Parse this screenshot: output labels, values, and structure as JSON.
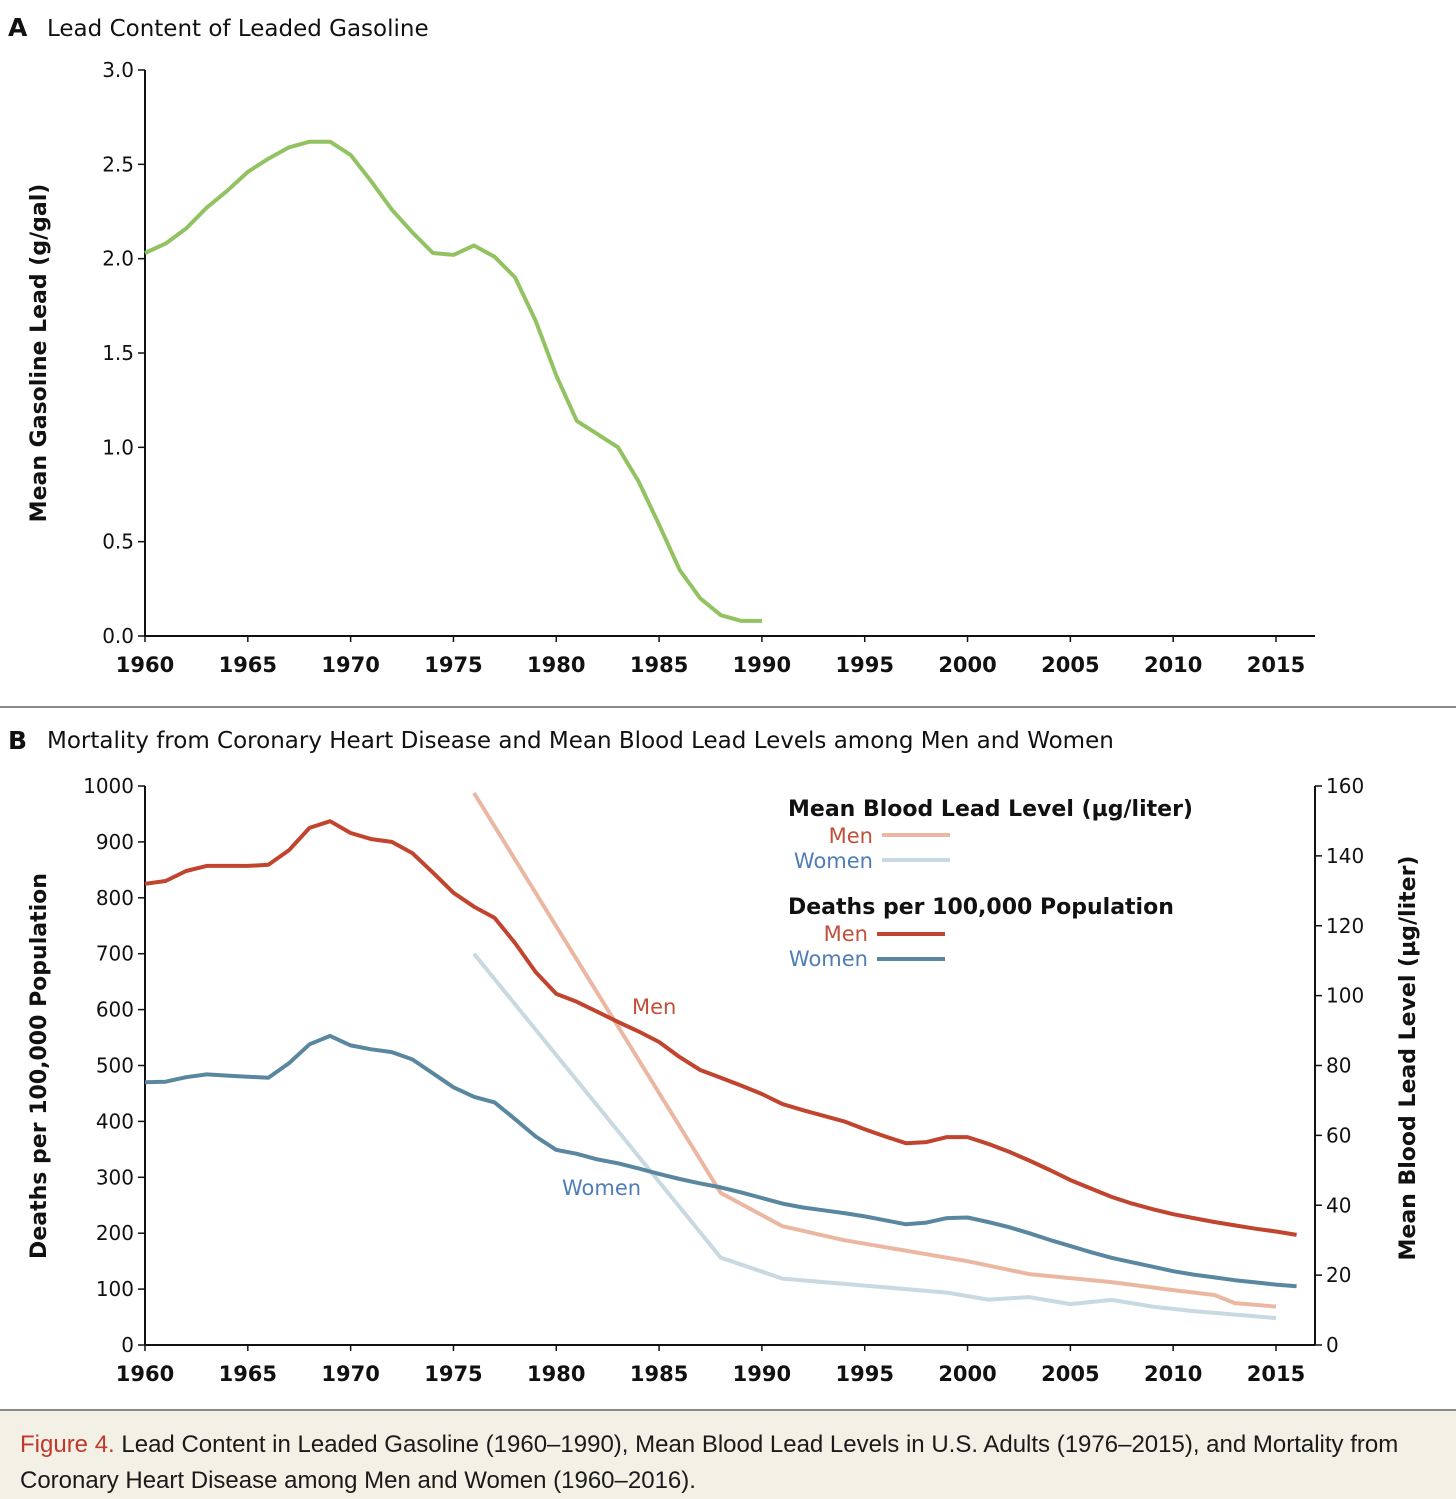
{
  "chart_data": [
    {
      "panel": "A",
      "type": "line",
      "title": "Lead Content of Leaded Gasoline",
      "xlabel": "",
      "ylabel": "Mean Gasoline Lead (g/gal)",
      "xlim": [
        1960,
        2017
      ],
      "ylim": [
        0,
        3.0
      ],
      "xticks": [
        "1960",
        "1965",
        "1970",
        "1975",
        "1980",
        "1985",
        "1990",
        "1995",
        "2000",
        "2005",
        "2010",
        "2015"
      ],
      "yticks": [
        "0.0",
        "0.5",
        "1.0",
        "1.5",
        "2.0",
        "2.5",
        "3.0"
      ],
      "grid": false,
      "series": [
        {
          "color": "#93c262",
          "x": [
            1960,
            1961,
            1962,
            1963,
            1964,
            1965,
            1966,
            1967,
            1968,
            1969,
            1970,
            1971,
            1972,
            1973,
            1974,
            1975,
            1976,
            1977,
            1978,
            1979,
            1980,
            1981,
            1982,
            1983,
            1984,
            1985,
            1986,
            1987,
            1988,
            1989,
            1990
          ],
          "y": [
            2.03,
            2.08,
            2.16,
            2.27,
            2.36,
            2.46,
            2.53,
            2.59,
            2.62,
            2.62,
            2.55,
            2.41,
            2.26,
            2.14,
            2.03,
            2.02,
            2.07,
            2.01,
            1.9,
            1.67,
            1.38,
            1.14,
            1.07,
            1.0,
            0.82,
            0.59,
            0.35,
            0.2,
            0.11,
            0.08,
            0.08
          ]
        }
      ]
    },
    {
      "panel": "B",
      "type": "line",
      "title": "Mortality from Coronary Heart Disease and Mean Blood Lead Levels among Men and Women",
      "xlabel": "",
      "ylabel": "Deaths per 100,000 Population",
      "y2label": "Mean Blood Lead Level (µg/liter)",
      "xlim": [
        1960,
        2017
      ],
      "ylim": [
        0,
        1000
      ],
      "y2lim": [
        0,
        160
      ],
      "xticks": [
        "1960",
        "1965",
        "1970",
        "1975",
        "1980",
        "1985",
        "1990",
        "1995",
        "2000",
        "2005",
        "2010",
        "2015"
      ],
      "yticks": [
        "0",
        "100",
        "200",
        "300",
        "400",
        "500",
        "600",
        "700",
        "800",
        "900",
        "1000"
      ],
      "y2ticks": [
        "0",
        "20",
        "40",
        "60",
        "80",
        "100",
        "120",
        "140",
        "160"
      ],
      "grid": false,
      "legend": {
        "placement": "top-right",
        "group1_title": "Mean Blood Lead Level (µg/liter)",
        "group2_title": "Deaths per 100,000 Population",
        "men": "Men",
        "women": "Women"
      },
      "annotations": {
        "men": "Men",
        "women": "Women"
      },
      "label_colors": {
        "men": "#c0503a",
        "women": "#4f7db5"
      },
      "series": [
        {
          "name": "Men",
          "group": "Deaths per 100,000 Population",
          "axis": "left",
          "color": "#c0442e",
          "x": [
            1960,
            1961,
            1962,
            1963,
            1964,
            1965,
            1966,
            1967,
            1968,
            1969,
            1970,
            1971,
            1972,
            1973,
            1974,
            1975,
            1976,
            1977,
            1978,
            1979,
            1980,
            1981,
            1982,
            1983,
            1984,
            1985,
            1986,
            1987,
            1988,
            1989,
            1990,
            1991,
            1992,
            1993,
            1994,
            1995,
            1996,
            1997,
            1998,
            1999,
            2000,
            2001,
            2002,
            2003,
            2004,
            2005,
            2006,
            2007,
            2008,
            2009,
            2010,
            2011,
            2012,
            2013,
            2014,
            2015,
            2016
          ],
          "y": [
            825,
            830,
            848,
            857,
            857,
            857,
            859,
            885,
            925,
            937,
            916,
            905,
            900,
            880,
            845,
            809,
            784,
            764,
            719,
            667,
            628,
            614,
            596,
            578,
            561,
            542,
            515,
            492,
            478,
            464,
            449,
            431,
            420,
            410,
            400,
            386,
            373,
            361,
            363,
            372,
            372,
            360,
            346,
            330,
            313,
            295,
            280,
            265,
            253,
            243,
            234,
            227,
            220,
            214,
            208,
            203,
            197
          ]
        },
        {
          "name": "Women",
          "group": "Deaths per 100,000 Population",
          "axis": "left",
          "color": "#5a87a0",
          "x": [
            1960,
            1961,
            1962,
            1963,
            1964,
            1965,
            1966,
            1967,
            1968,
            1969,
            1970,
            1971,
            1972,
            1973,
            1974,
            1975,
            1976,
            1977,
            1978,
            1979,
            1980,
            1981,
            1982,
            1983,
            1984,
            1985,
            1986,
            1987,
            1988,
            1989,
            1990,
            1991,
            1992,
            1993,
            1994,
            1995,
            1996,
            1997,
            1998,
            1999,
            2000,
            2001,
            2002,
            2003,
            2004,
            2005,
            2006,
            2007,
            2008,
            2009,
            2010,
            2011,
            2012,
            2013,
            2014,
            2015,
            2016
          ],
          "y": [
            470,
            471,
            479,
            484,
            482,
            480,
            478,
            504,
            538,
            553,
            536,
            529,
            524,
            511,
            486,
            461,
            444,
            434,
            404,
            373,
            349,
            342,
            332,
            325,
            316,
            306,
            297,
            289,
            282,
            273,
            263,
            253,
            246,
            241,
            236,
            230,
            223,
            216,
            219,
            227,
            228,
            220,
            211,
            200,
            188,
            177,
            166,
            156,
            148,
            140,
            132,
            126,
            121,
            116,
            112,
            108,
            105
          ]
        },
        {
          "name": "Men",
          "group": "Mean Blood Lead Level (µg/liter)",
          "axis": "right",
          "color": "#ebb7a2",
          "x": [
            1976,
            1988,
            1991,
            1994,
            2000,
            2003,
            2007,
            2010,
            2012,
            2013,
            2015
          ],
          "y": [
            158,
            43.5,
            34,
            30,
            24,
            20.3,
            18,
            15.7,
            14.3,
            12,
            11
          ]
        },
        {
          "name": "Women",
          "group": "Mean Blood Lead Level (µg/liter)",
          "axis": "right",
          "color": "#c8d9e2",
          "x": [
            1976,
            1988,
            1991,
            1994,
            1999,
            2001,
            2003,
            2005,
            2007,
            2009,
            2011,
            2015
          ],
          "y": [
            112,
            25,
            19,
            17.5,
            15,
            13,
            13.7,
            11.7,
            12.9,
            11,
            9.7,
            7.7
          ]
        }
      ]
    }
  ],
  "caption": {
    "label": "Figure 4.",
    "text": "Lead Content in Leaded Gasoline (1960–1990), Mean Blood Lead Levels in U.S. Adults (1976–2015), and Mortality from Coronary Heart Disease among Men and Women (1960–2016)."
  }
}
